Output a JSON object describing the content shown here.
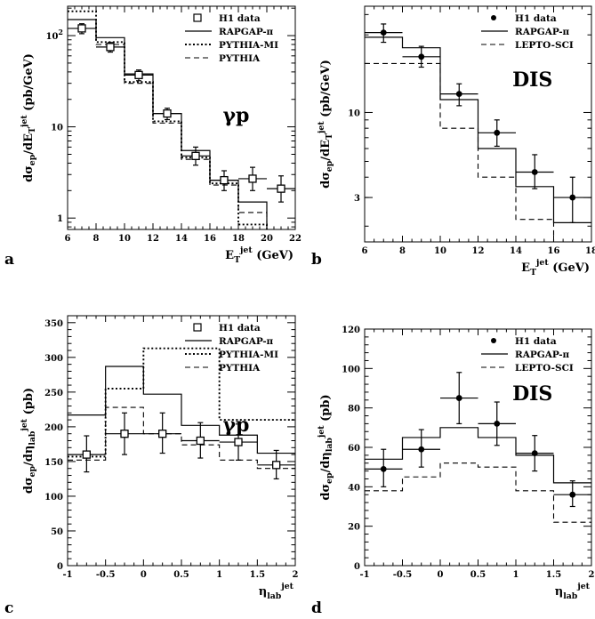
{
  "chart_data": [
    {
      "type": "line",
      "panel_label": "a",
      "tag": "γp",
      "ylabel": "dσ_ep/dE_T^jet (pb/GeV)",
      "xlabel": "E_T^jet (GeV)",
      "xlim": [
        6,
        22
      ],
      "ylim": [
        0.75,
        210
      ],
      "yscale": "log",
      "xticks": [
        6,
        8,
        10,
        12,
        14,
        16,
        18,
        20,
        22
      ],
      "yticks": [
        {
          "v": 1,
          "t": "1"
        },
        {
          "v": 10,
          "t": "10"
        },
        {
          "v": 100,
          "t": "10 2"
        }
      ],
      "legend_loc": "top-right",
      "data": {
        "name": "H1 data",
        "marker": "open-square",
        "x": [
          7,
          9,
          11,
          13,
          15,
          17,
          19,
          21
        ],
        "y": [
          120,
          75,
          37,
          14,
          4.8,
          2.6,
          2.7,
          2.1
        ],
        "xerr": [
          1,
          1,
          1,
          1,
          1,
          1,
          1,
          1
        ],
        "ylo": [
          105,
          66,
          32,
          12,
          3.8,
          2.0,
          2.0,
          1.5
        ],
        "yhi": [
          135,
          84,
          42,
          16,
          6.0,
          3.3,
          3.6,
          2.9
        ]
      },
      "series": [
        {
          "name": "RAPGAP-π",
          "style": "solid",
          "edges": [
            6,
            8,
            10,
            12,
            14,
            16,
            18,
            20
          ],
          "values": [
            150,
            95,
            38,
            14,
            5.5,
            2.6,
            1.5
          ]
        },
        {
          "name": "PYTHIA-MI",
          "style": "dotted",
          "edges": [
            6,
            8,
            10,
            12,
            14,
            16,
            18,
            20
          ],
          "values": [
            185,
            85,
            31,
            11.5,
            4.6,
            2.4,
            0.85
          ]
        },
        {
          "name": "PYTHIA",
          "style": "dashed",
          "edges": [
            6,
            8,
            10,
            12,
            14,
            16,
            18,
            20
          ],
          "values": [
            150,
            80,
            30,
            11,
            4.4,
            2.3,
            1.15
          ]
        }
      ]
    },
    {
      "type": "line",
      "panel_label": "b",
      "tag": "DIS",
      "ylabel": "dσ_ep/dE_T^jet (pb/GeV)",
      "xlabel": "E_T^jet (GeV)",
      "xlim": [
        6,
        18
      ],
      "ylim": [
        1.6,
        45
      ],
      "yscale": "log",
      "xticks": [
        6,
        8,
        10,
        12,
        14,
        16,
        18
      ],
      "yticks": [
        {
          "v": 3,
          "t": "3"
        },
        {
          "v": 10,
          "t": "10"
        }
      ],
      "legend_loc": "top-right",
      "data": {
        "name": "H1 data",
        "marker": "filled-circle",
        "x": [
          7,
          9,
          11,
          13,
          15,
          17
        ],
        "y": [
          31,
          22,
          13,
          7.5,
          4.3,
          3.0
        ],
        "xerr": [
          1,
          1,
          1,
          1,
          1,
          1
        ],
        "ylo": [
          27,
          19,
          11,
          6.2,
          3.4,
          2.1
        ],
        "yhi": [
          35,
          25.5,
          15,
          9.0,
          5.5,
          4.0
        ]
      },
      "series": [
        {
          "name": "RAPGAP-π",
          "style": "solid",
          "edges": [
            6,
            8,
            10,
            12,
            14,
            16,
            18
          ],
          "values": [
            29,
            25,
            12,
            6.0,
            3.5,
            2.1
          ]
        },
        {
          "name": "LEPTO-SCI",
          "style": "dashed",
          "edges": [
            6,
            8,
            10,
            12,
            14,
            16,
            18
          ],
          "values": [
            20,
            20,
            8.0,
            4.0,
            2.2,
            1.6
          ]
        }
      ]
    },
    {
      "type": "line",
      "panel_label": "c",
      "tag": "γp",
      "ylabel": "dσ_ep/dη_lab^jet (pb)",
      "xlabel": "η_lab^jet",
      "xlim": [
        -1,
        2
      ],
      "ylim": [
        0,
        360
      ],
      "yscale": "linear",
      "xticks": [
        {
          "v": -1,
          "t": "-1"
        },
        {
          "v": -0.5,
          "t": "-0.5"
        },
        {
          "v": 0,
          "t": "0"
        },
        {
          "v": 0.5,
          "t": "0.5"
        },
        {
          "v": 1,
          "t": "1"
        },
        {
          "v": 1.5,
          "t": "1.5"
        },
        {
          "v": 2,
          "t": "2"
        }
      ],
      "yticks": [
        {
          "v": 0,
          "t": "0"
        },
        {
          "v": 50,
          "t": "50"
        },
        {
          "v": 100,
          "t": "100"
        },
        {
          "v": 150,
          "t": "150"
        },
        {
          "v": 200,
          "t": "200"
        },
        {
          "v": 250,
          "t": "250"
        },
        {
          "v": 300,
          "t": "300"
        },
        {
          "v": 350,
          "t": "350"
        }
      ],
      "legend_loc": "top-right",
      "data": {
        "name": "H1 data",
        "marker": "open-square",
        "x": [
          -0.75,
          -0.25,
          0.25,
          0.75,
          1.25,
          1.75
        ],
        "y": [
          160,
          190,
          190,
          180,
          178,
          145
        ],
        "xerr": [
          0.25,
          0.25,
          0.25,
          0.25,
          0.25,
          0.25
        ],
        "ylo": [
          135,
          160,
          162,
          155,
          152,
          125
        ],
        "yhi": [
          187,
          220,
          220,
          206,
          204,
          166
        ]
      },
      "series": [
        {
          "name": "RAPGAP-π",
          "style": "solid",
          "edges": [
            -1,
            -0.5,
            0,
            0.5,
            1,
            1.5,
            2
          ],
          "values": [
            217,
            287,
            247,
            202,
            188,
            162
          ]
        },
        {
          "name": "PYTHIA-MI",
          "style": "dotted",
          "edges": [
            -1,
            -0.5,
            0,
            0.5,
            1,
            1.5,
            2
          ],
          "values": [
            157,
            255,
            313,
            313,
            210,
            210
          ]
        },
        {
          "name": "PYTHIA",
          "style": "dashed",
          "edges": [
            -1,
            -0.5,
            0,
            0.5,
            1,
            1.5,
            2
          ],
          "values": [
            152,
            228,
            190,
            174,
            152,
            140
          ]
        }
      ]
    },
    {
      "type": "line",
      "panel_label": "d",
      "tag": "DIS",
      "ylabel": "dσ_ep/dη_lab^jet (pb)",
      "xlabel": "η_lab^jet",
      "xlim": [
        -1,
        2
      ],
      "ylim": [
        0,
        120
      ],
      "yscale": "linear",
      "xticks": [
        {
          "v": -1,
          "t": "-1"
        },
        {
          "v": -0.5,
          "t": "-0.5"
        },
        {
          "v": 0,
          "t": "0"
        },
        {
          "v": 0.5,
          "t": "0.5"
        },
        {
          "v": 1,
          "t": "1"
        },
        {
          "v": 1.5,
          "t": "1.5"
        },
        {
          "v": 2,
          "t": "2"
        }
      ],
      "yticks": [
        {
          "v": 0,
          "t": "0"
        },
        {
          "v": 20,
          "t": "20"
        },
        {
          "v": 40,
          "t": "40"
        },
        {
          "v": 60,
          "t": "60"
        },
        {
          "v": 80,
          "t": "80"
        },
        {
          "v": 100,
          "t": "100"
        },
        {
          "v": 120,
          "t": "120"
        }
      ],
      "legend_loc": "top-right",
      "data": {
        "name": "H1 data",
        "marker": "filled-circle",
        "x": [
          -0.75,
          -0.25,
          0.25,
          0.75,
          1.25,
          1.75
        ],
        "y": [
          49,
          59,
          85,
          72,
          57,
          36
        ],
        "xerr": [
          0.25,
          0.25,
          0.25,
          0.25,
          0.25,
          0.25
        ],
        "ylo": [
          40,
          50,
          72,
          61,
          48,
          30
        ],
        "yhi": [
          59,
          69,
          98,
          83,
          66,
          43
        ]
      },
      "series": [
        {
          "name": "RAPGAP-π",
          "style": "solid",
          "edges": [
            -1,
            -0.5,
            0,
            0.5,
            1,
            1.5,
            2
          ],
          "values": [
            54,
            65,
            70,
            65,
            56,
            42
          ]
        },
        {
          "name": "LEPTO-SCI",
          "style": "dashed",
          "edges": [
            -1,
            -0.5,
            0,
            0.5,
            1,
            1.5,
            2
          ],
          "values": [
            38,
            45,
            52,
            50,
            38,
            22
          ]
        }
      ]
    }
  ]
}
